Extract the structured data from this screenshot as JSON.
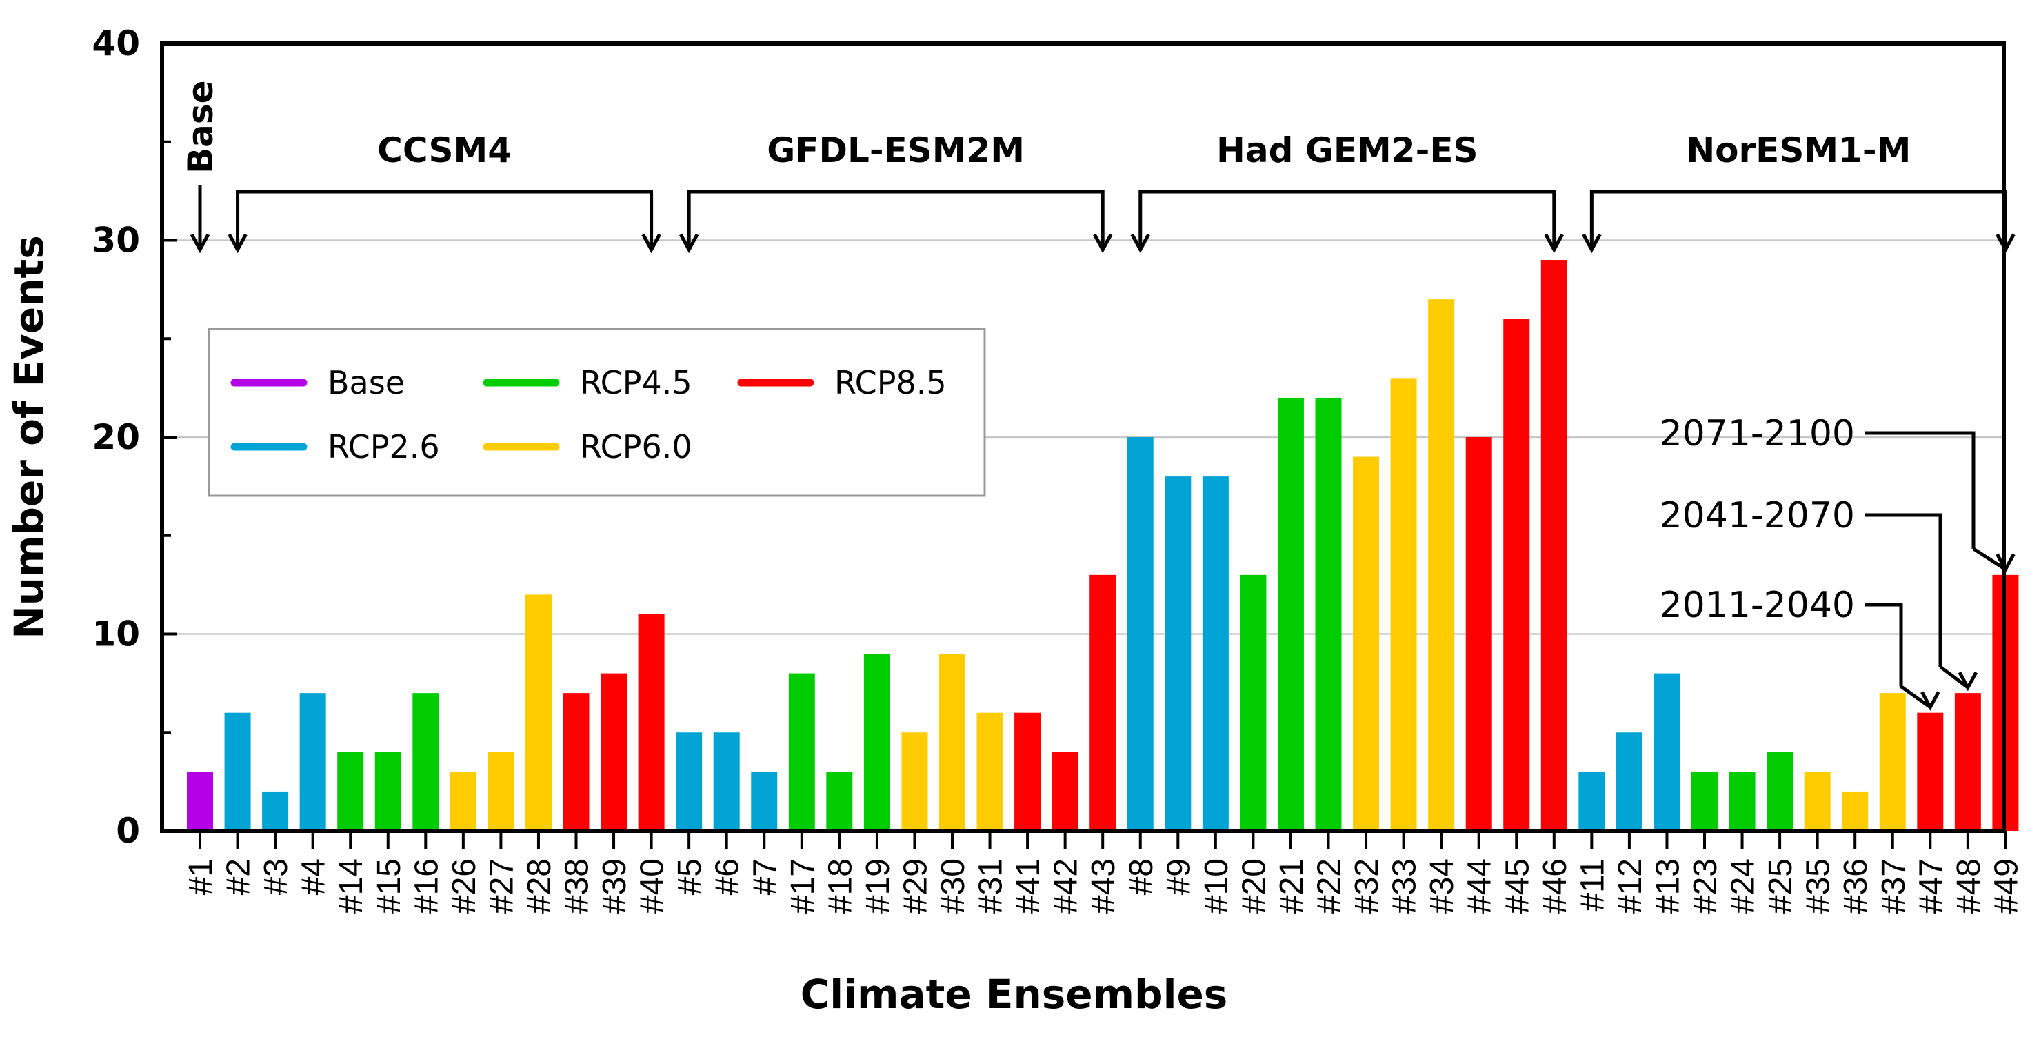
{
  "chart_data": {
    "type": "bar",
    "title": "",
    "xlabel": "Climate Ensembles",
    "ylabel": "Number of Events",
    "ylim": [
      0,
      40
    ],
    "yticks": [
      0,
      10,
      20,
      30,
      40
    ],
    "grid": true,
    "categories": [
      "#1",
      "#2",
      "#3",
      "#4",
      "#14",
      "#15",
      "#16",
      "#26",
      "#27",
      "#28",
      "#38",
      "#39",
      "#40",
      "#5",
      "#6",
      "#7",
      "#17",
      "#18",
      "#19",
      "#29",
      "#30",
      "#31",
      "#41",
      "#42",
      "#43",
      "#8",
      "#9",
      "#10",
      "#20",
      "#21",
      "#22",
      "#32",
      "#33",
      "#34",
      "#44",
      "#45",
      "#46",
      "#11",
      "#12",
      "#13",
      "#23",
      "#24",
      "#25",
      "#35",
      "#36",
      "#37",
      "#47",
      "#48",
      "#49"
    ],
    "values": [
      3,
      6,
      2,
      7,
      4,
      4,
      7,
      3,
      4,
      12,
      7,
      8,
      11,
      5,
      5,
      3,
      8,
      3,
      9,
      5,
      9,
      6,
      6,
      4,
      13,
      20,
      18,
      18,
      13,
      22,
      22,
      19,
      23,
      27,
      20,
      26,
      29,
      3,
      5,
      8,
      3,
      3,
      4,
      3,
      2,
      7,
      6,
      7,
      13
    ],
    "scenarios": [
      "Base",
      "RCP2.6",
      "RCP2.6",
      "RCP2.6",
      "RCP4.5",
      "RCP4.5",
      "RCP4.5",
      "RCP6.0",
      "RCP6.0",
      "RCP6.0",
      "RCP8.5",
      "RCP8.5",
      "RCP8.5",
      "RCP2.6",
      "RCP2.6",
      "RCP2.6",
      "RCP4.5",
      "RCP4.5",
      "RCP4.5",
      "RCP6.0",
      "RCP6.0",
      "RCP6.0",
      "RCP8.5",
      "RCP8.5",
      "RCP8.5",
      "RCP2.6",
      "RCP2.6",
      "RCP2.6",
      "RCP4.5",
      "RCP4.5",
      "RCP4.5",
      "RCP6.0",
      "RCP6.0",
      "RCP6.0",
      "RCP8.5",
      "RCP8.5",
      "RCP8.5",
      "RCP2.6",
      "RCP2.6",
      "RCP2.6",
      "RCP4.5",
      "RCP4.5",
      "RCP4.5",
      "RCP6.0",
      "RCP6.0",
      "RCP6.0",
      "RCP8.5",
      "RCP8.5",
      "RCP8.5"
    ],
    "legend": [
      {
        "name": "Base",
        "color": "#B300E6"
      },
      {
        "name": "RCP2.6",
        "color": "#00A3D4"
      },
      {
        "name": "RCP4.5",
        "color": "#00CC00"
      },
      {
        "name": "RCP6.0",
        "color": "#FFCC00"
      },
      {
        "name": "RCP8.5",
        "color": "#FF0000"
      }
    ],
    "legend_position": "upper-left",
    "groups": [
      {
        "label": "Base",
        "start": 0,
        "end": 0
      },
      {
        "label": "CCSM4",
        "start": 1,
        "end": 12
      },
      {
        "label": "GFDL-ESM2M",
        "start": 13,
        "end": 24
      },
      {
        "label": "Had GEM2-ES",
        "start": 25,
        "end": 36
      },
      {
        "label": "NorESM1-M",
        "start": 37,
        "end": 48
      }
    ],
    "period_annotations": [
      {
        "label": "2071-2100",
        "target": 48
      },
      {
        "label": "2041-2070",
        "target": 47
      },
      {
        "label": "2011-2040",
        "target": 46
      }
    ]
  }
}
